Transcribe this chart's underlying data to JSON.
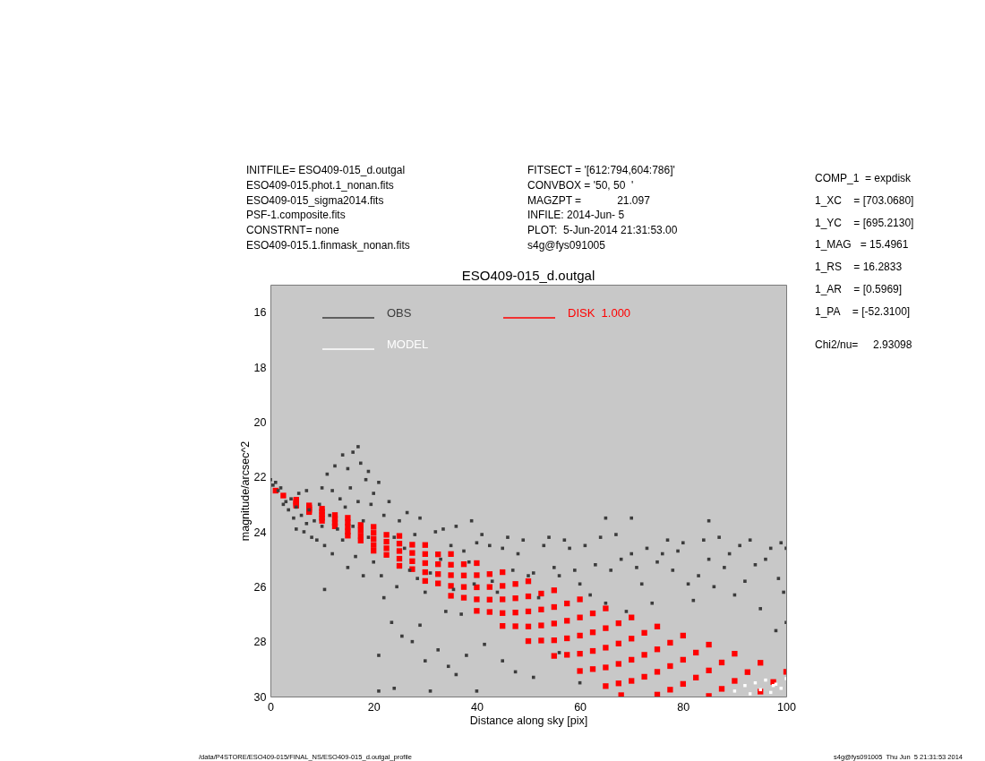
{
  "chart_data": {
    "type": "scatter",
    "title": "ESO409-015_d.outgal",
    "xlabel": "Distance along sky [pix]",
    "ylabel": "magnitude/arcsec^2",
    "xlim": [
      0,
      100
    ],
    "xticks": [
      0,
      20,
      40,
      60,
      80,
      100
    ],
    "ylim": [
      30,
      15
    ],
    "yticks": [
      16,
      18,
      20,
      22,
      24,
      26,
      28,
      30
    ],
    "legend": "top left",
    "marker": "square",
    "series": [
      {
        "name": "OBS",
        "color": "#3c3c3c",
        "x": [
          0,
          0.5,
          1,
          1.5,
          2,
          2.5,
          3,
          3.5,
          4,
          4.5,
          5,
          5,
          5.5,
          6,
          6.5,
          7,
          7,
          7.5,
          8,
          8.5,
          9,
          9.5,
          10,
          10,
          10.5,
          10.5,
          11,
          11.5,
          12,
          12,
          12.5,
          13,
          13.5,
          14,
          14,
          14.5,
          15,
          15,
          15.5,
          16,
          16,
          16.5,
          17,
          17,
          17.5,
          18,
          18,
          18.5,
          19,
          19,
          19.5,
          20,
          20,
          21,
          21,
          21,
          21.5,
          22,
          22,
          23,
          23.5,
          24,
          24,
          24.5,
          25,
          25.5,
          26,
          26.5,
          27,
          27.5,
          28,
          28.5,
          29,
          29,
          30,
          30,
          31,
          31,
          32,
          32.5,
          33,
          33.5,
          34,
          34.5,
          35,
          35.5,
          36,
          36,
          37,
          37.5,
          38,
          38.5,
          39,
          39.5,
          40,
          40,
          41,
          41.5,
          42.5,
          43,
          44,
          45,
          45,
          46,
          47,
          47.5,
          48,
          49,
          50,
          51,
          51,
          52,
          53,
          54,
          55,
          56,
          56,
          57,
          58,
          59,
          60,
          60,
          61,
          62,
          63,
          64,
          65,
          65,
          66,
          67,
          68,
          69,
          70,
          70,
          71,
          72,
          73,
          74,
          75,
          76,
          77,
          78,
          79,
          80,
          81,
          82,
          83,
          84,
          85,
          85,
          86,
          87,
          88,
          89,
          90,
          91,
          92,
          93,
          94,
          95,
          96,
          97,
          98,
          98.5,
          99,
          99.5,
          100,
          100
        ],
        "values": [
          22.1,
          22.3,
          22.2,
          22.5,
          22.4,
          23.0,
          22.9,
          23.2,
          22.8,
          23.5,
          23.1,
          23.9,
          22.6,
          23.4,
          24.0,
          22.5,
          23.7,
          23.2,
          24.2,
          23.6,
          24.3,
          23.0,
          23.8,
          22.4,
          24.5,
          26.1,
          21.9,
          23.4,
          22.5,
          24.8,
          21.6,
          23.9,
          22.8,
          21.2,
          24.3,
          23.1,
          21.7,
          25.3,
          22.4,
          21.1,
          23.8,
          24.9,
          20.9,
          22.9,
          21.5,
          23.6,
          25.6,
          22.1,
          24.2,
          21.8,
          23.0,
          25.1,
          22.6,
          22.2,
          28.5,
          29.8,
          25.6,
          23.4,
          26.4,
          22.9,
          27.3,
          24.2,
          29.7,
          26.0,
          23.6,
          27.8,
          24.6,
          23.3,
          25.4,
          28.0,
          24.1,
          25.7,
          23.5,
          27.4,
          26.2,
          28.7,
          25.5,
          29.8,
          24.0,
          28.3,
          25.0,
          23.9,
          26.9,
          28.9,
          24.5,
          26.1,
          23.8,
          29.2,
          27.0,
          24.7,
          28.5,
          25.1,
          23.6,
          25.9,
          24.4,
          29.8,
          24.1,
          28.1,
          24.5,
          25.8,
          26.2,
          24.6,
          28.7,
          24.2,
          25.4,
          29.1,
          24.8,
          24.3,
          25.6,
          25.5,
          29.3,
          26.4,
          24.5,
          24.2,
          25.3,
          25.6,
          28.4,
          24.3,
          24.6,
          25.4,
          25.9,
          29.5,
          24.5,
          26.3,
          25.2,
          24.2,
          23.5,
          26.6,
          25.4,
          24.1,
          25.0,
          26.9,
          23.5,
          24.8,
          25.3,
          25.9,
          24.6,
          26.6,
          25.1,
          24.8,
          24.3,
          25.4,
          24.7,
          24.4,
          25.9,
          26.5,
          25.6,
          24.3,
          23.6,
          25.0,
          26.0,
          24.2,
          25.3,
          24.8,
          26.3,
          24.5,
          25.8,
          24.3,
          25.2,
          26.8,
          25.0,
          24.6,
          27.6,
          25.7,
          24.4,
          26.2,
          24.6,
          27.3
        ]
      },
      {
        "name": "MODEL",
        "color": "#ffffff",
        "x": [
          90,
          92,
          93,
          94,
          95,
          96,
          97,
          97.5,
          98,
          99,
          100
        ],
        "values": [
          29.8,
          29.6,
          29.9,
          29.5,
          29.75,
          29.4,
          29.85,
          29.6,
          29.55,
          29.7,
          29.35
        ]
      },
      {
        "name": "DISK  1.000",
        "color": "#ff0000",
        "x": [
          1,
          5,
          10,
          15,
          20,
          25,
          30,
          35,
          40,
          45,
          50,
          55,
          60,
          65,
          70,
          75,
          80,
          85,
          90,
          95,
          100,
          2.5,
          7.5,
          12.5,
          17.5,
          22.5,
          27.5,
          32.5,
          37.5,
          42.5,
          47.5,
          52.5,
          57.5,
          62.5,
          67.5,
          72.5,
          77.5,
          82.5,
          87.5,
          92.5,
          97.5,
          5,
          10,
          15,
          20,
          25,
          30,
          35,
          40,
          45,
          50,
          55,
          60,
          65,
          70,
          75,
          80,
          85,
          90,
          95,
          7.5,
          12.5,
          17.5,
          22.5,
          27.5,
          32.5,
          37.5,
          42.5,
          47.5,
          52.5,
          57.5,
          62.5,
          67.5,
          72.5,
          77.5,
          82.5,
          87.5,
          5,
          10,
          15,
          20,
          25,
          30,
          35,
          40,
          45,
          50,
          55,
          60,
          65,
          70,
          75,
          80,
          85,
          7.5,
          12.5,
          17.5,
          22.5,
          27.5,
          32.5,
          37.5,
          42.5,
          47.5,
          52.5,
          57.5,
          62.5,
          67.5,
          72.5,
          77.5,
          5,
          10,
          15,
          20,
          25,
          30,
          35,
          40,
          45,
          50,
          55,
          60,
          65,
          70,
          75,
          7.5,
          12.5,
          17.5,
          22.5,
          27.5,
          32.5,
          37.5,
          42.5,
          47.5,
          52.5,
          57.5,
          62.5,
          67.5,
          5,
          10,
          15,
          20,
          25,
          30,
          35,
          40,
          45,
          50,
          55,
          60,
          65,
          68
        ],
        "values": [
          22.5,
          22.83,
          23.16,
          23.49,
          23.82,
          24.15,
          24.48,
          24.81,
          25.14,
          25.47,
          25.8,
          26.13,
          26.46,
          26.79,
          27.12,
          27.45,
          27.78,
          28.11,
          28.44,
          28.77,
          29.1,
          22.68,
          23.04,
          23.39,
          23.75,
          24.11,
          24.47,
          24.82,
          25.18,
          25.54,
          25.9,
          26.25,
          26.61,
          26.97,
          27.33,
          27.68,
          28.04,
          28.4,
          28.76,
          29.11,
          29.47,
          22.89,
          23.27,
          23.66,
          24.04,
          24.43,
          24.81,
          25.2,
          25.58,
          25.97,
          26.35,
          26.74,
          27.12,
          27.51,
          27.89,
          28.28,
          28.66,
          29.05,
          29.43,
          29.82,
          23.12,
          23.53,
          23.94,
          24.36,
          24.77,
          25.18,
          25.59,
          26.01,
          26.42,
          26.83,
          27.24,
          27.66,
          28.07,
          28.48,
          28.89,
          29.31,
          29.72,
          22.94,
          23.38,
          23.82,
          24.26,
          24.7,
          25.14,
          25.58,
          26.02,
          26.46,
          26.9,
          27.34,
          27.78,
          28.22,
          28.66,
          29.1,
          29.54,
          29.98,
          23.2,
          23.67,
          24.14,
          24.6,
          25.07,
          25.54,
          26.01,
          26.47,
          26.94,
          27.41,
          27.88,
          28.34,
          28.81,
          29.28,
          29.75,
          23.0,
          23.49,
          23.99,
          24.48,
          24.98,
          25.47,
          25.97,
          26.46,
          26.96,
          27.45,
          27.95,
          28.44,
          28.94,
          29.43,
          29.93,
          23.28,
          23.8,
          24.32,
          24.84,
          25.36,
          25.88,
          26.4,
          26.92,
          27.44,
          27.96,
          28.48,
          29.0,
          29.52,
          23.05,
          23.6,
          24.14,
          24.69,
          25.24,
          25.79,
          26.33,
          26.88,
          27.43,
          27.98,
          28.52,
          29.07,
          29.62,
          29.95
        ]
      }
    ],
    "annotations": [
      "INITFILE= ESO409-015_d.outgal\nESO409-015.phot.1_nonan.fits\nESO409-015_sigma2014.fits\nPSF-1.composite.fits\nCONSTRNT= none\nESO409-015.1.finmask_nonan.fits",
      "FITSECT = '[612:794,604:786]'\nCONVBOX = '50, 50  '\nMAGZPT =            21.097\nINFILE: 2014-Jun- 5\nPLOT:  5-Jun-2014 21:31:53.00\ns4g@fys091005",
      "COMP_1  = expdisk\n1_XC    = [703.0680]\n1_YC    = [695.2130]\n1_MAG   = 15.4961\n1_RS    = 16.2833\n1_AR    = [0.5969]\n1_PA    = [-52.3100]",
      "Chi2/nu=     2.93098",
      "/data/P4STORE/ESO409-015/FINAL_NS/ESO409-015_d.outgal_profile",
      "s4g@fys091005  Thu Jun  5 21:31:53 2014"
    ]
  }
}
